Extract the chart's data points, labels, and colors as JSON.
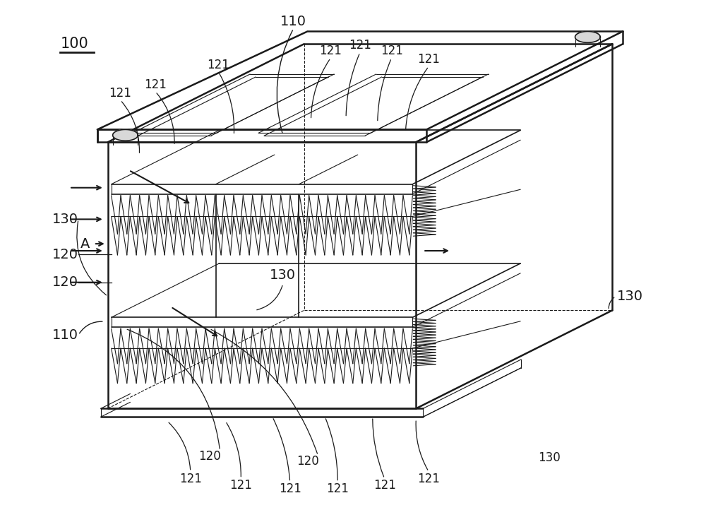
{
  "bg_color": "#ffffff",
  "line_color": "#1a1a1a",
  "fig_width": 10.0,
  "fig_height": 7.22,
  "dpi": 100,
  "lw_main": 1.8,
  "lw_med": 1.2,
  "lw_thin": 0.8
}
